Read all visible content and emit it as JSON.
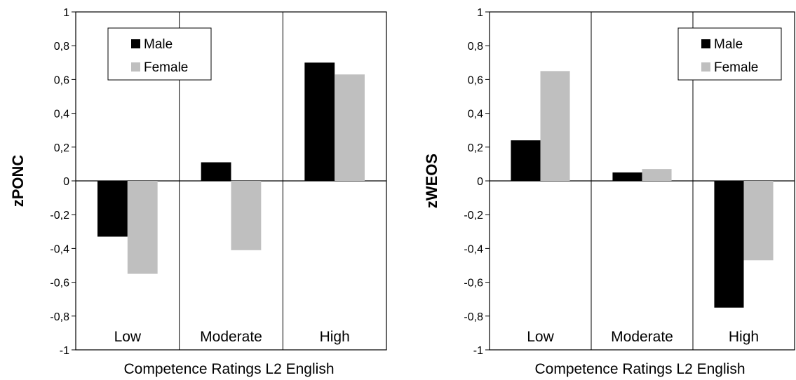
{
  "colors": {
    "male": "#000000",
    "female": "#bfbfbf"
  },
  "chart_data": [
    {
      "type": "bar",
      "ylabel": "zPONC",
      "xlabel": "Competence Ratings L2 English",
      "categories": [
        "Low",
        "Moderate",
        "High"
      ],
      "series": [
        {
          "name": "Male",
          "values": [
            -0.33,
            0.11,
            0.7
          ]
        },
        {
          "name": "Female",
          "values": [
            -0.55,
            -0.41,
            0.63
          ]
        }
      ],
      "ylim": [
        -1,
        1
      ],
      "yticks": [
        "-1",
        "-0,8",
        "-0,6",
        "-0,4",
        "-0,2",
        "0",
        "0,2",
        "0,4",
        "0,6",
        "0,8",
        "1"
      ],
      "legend": "top-left"
    },
    {
      "type": "bar",
      "ylabel": "zWEOS",
      "xlabel": "Competence Ratings L2 English",
      "categories": [
        "Low",
        "Moderate",
        "High"
      ],
      "series": [
        {
          "name": "Male",
          "values": [
            0.24,
            0.05,
            -0.75
          ]
        },
        {
          "name": "Female",
          "values": [
            0.65,
            0.07,
            -0.47
          ]
        }
      ],
      "ylim": [
        -1,
        1
      ],
      "yticks": [
        "-1",
        "-0,8",
        "-0,6",
        "-0,4",
        "-0,2",
        "0",
        "0,2",
        "0,4",
        "0,6",
        "0,8",
        "1"
      ],
      "legend": "top-right"
    }
  ]
}
